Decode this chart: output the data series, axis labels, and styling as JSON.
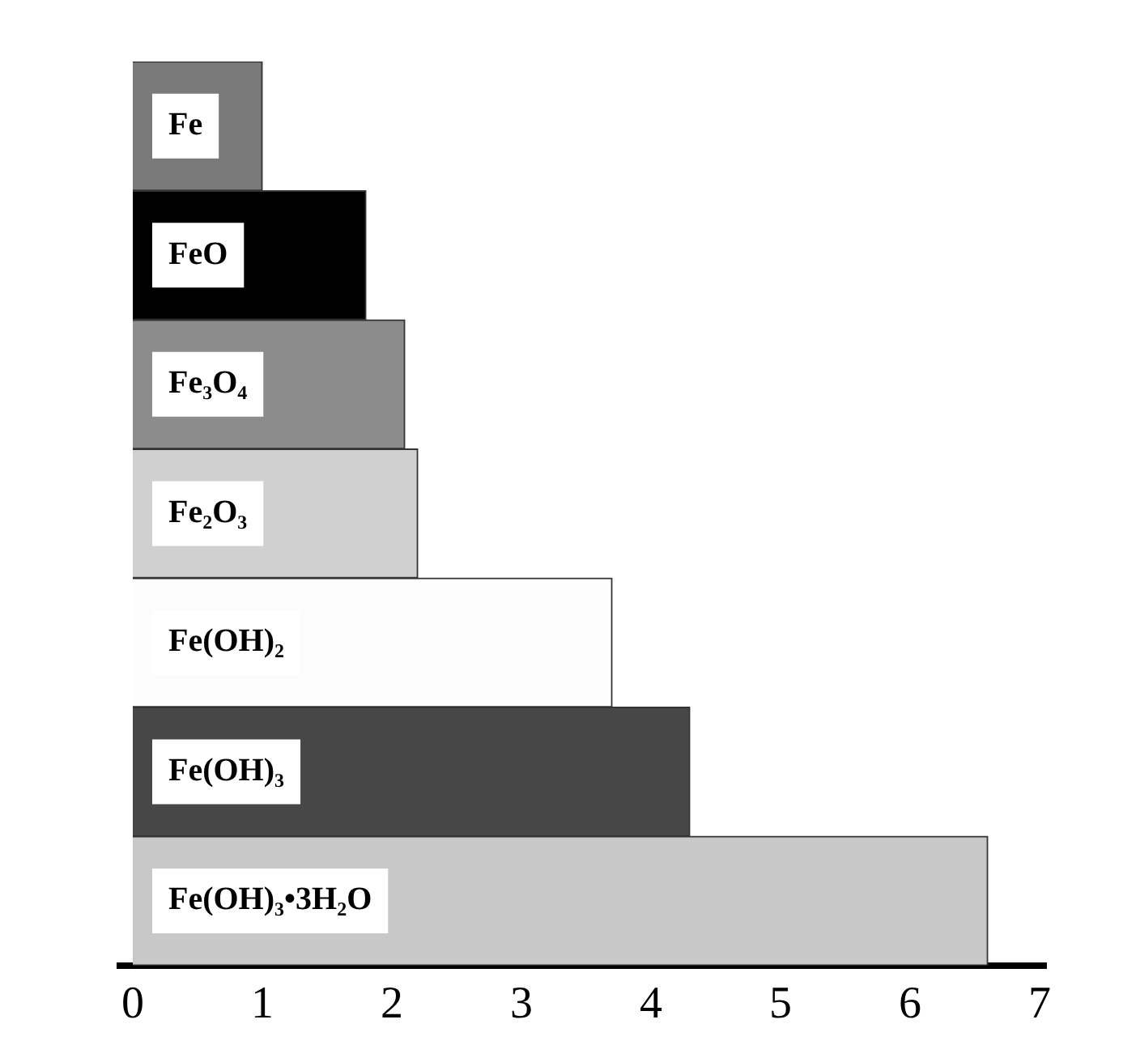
{
  "chart_data": {
    "type": "bar",
    "orientation": "horizontal",
    "categories": [
      "Fe",
      "FeO",
      "Fe₃O₄",
      "Fe₂O₃",
      "Fe(OH)₂",
      "Fe(OH)₃",
      "Fe(OH)₃•3H₂O"
    ],
    "values": [
      1.0,
      1.8,
      2.1,
      2.2,
      3.7,
      4.3,
      6.6
    ],
    "colors": [
      "#7a7a7a",
      "#000000",
      "#8c8c8c",
      "#d0d0d0",
      "#fcfcfc",
      "#474747",
      "#c8c8c8"
    ],
    "xlim": [
      -0.1,
      7.05
    ],
    "xticks": [
      0,
      1,
      2,
      3,
      4,
      5,
      6,
      7
    ],
    "grid": false,
    "legend": false
  }
}
